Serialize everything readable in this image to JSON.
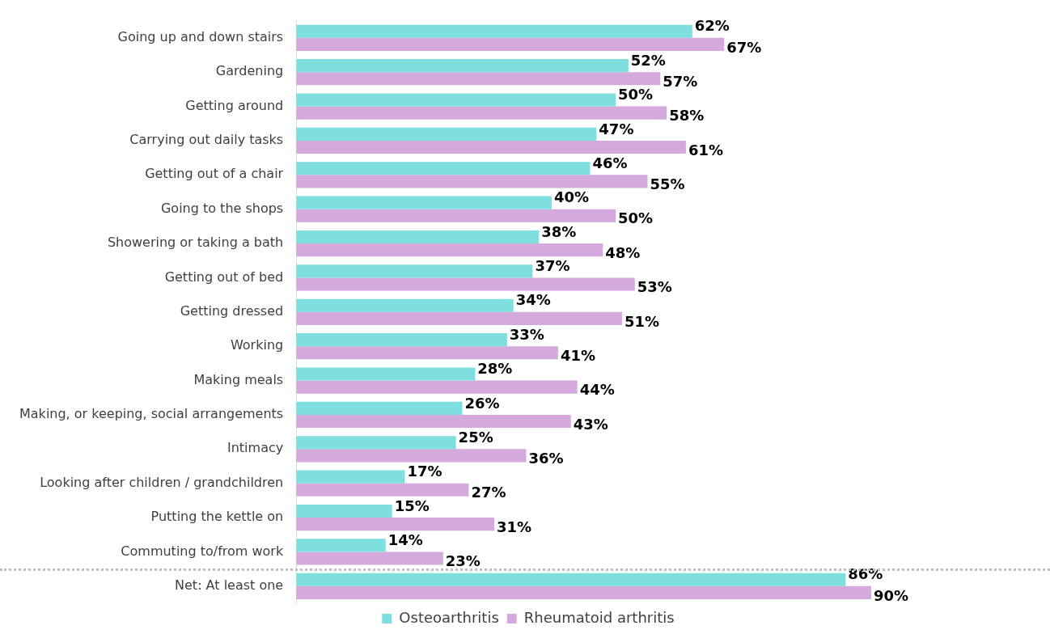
{
  "chart_data": {
    "type": "bar",
    "orientation": "horizontal",
    "categories": [
      "Going up and down stairs",
      "Gardening",
      "Getting around",
      "Carrying out daily tasks",
      "Getting out of a chair",
      "Going to the shops",
      "Showering or taking a bath",
      "Getting out of bed",
      "Getting dressed",
      "Working",
      "Making meals",
      "Making, or keeping, social arrangements",
      "Intimacy",
      "Looking after children / grandchildren",
      "Putting the kettle on",
      "Commuting to/from work",
      "Net: At least one"
    ],
    "series": [
      {
        "name": "Osteoarthritis",
        "color": "#7fdfdf",
        "values": [
          62,
          52,
          50,
          47,
          46,
          40,
          38,
          37,
          34,
          33,
          28,
          26,
          25,
          17,
          15,
          14,
          86
        ],
        "value_labels": [
          "62%",
          "52%",
          "50%",
          "47%",
          "46%",
          "40%",
          "38%",
          "37%",
          "34%",
          "33%",
          "28%",
          "26%",
          "25%",
          "17%",
          "15%",
          "14%",
          "86%"
        ]
      },
      {
        "name": "Rheumatoid arthritis",
        "color": "#d4aadd",
        "values": [
          67,
          57,
          58,
          61,
          55,
          50,
          48,
          53,
          51,
          41,
          44,
          43,
          36,
          27,
          31,
          23,
          90
        ],
        "value_labels": [
          "67%",
          "57%",
          "58%",
          "61%",
          "55%",
          "50%",
          "48%",
          "53%",
          "51%",
          "41%",
          "44%",
          "43%",
          "36%",
          "27%",
          "31%",
          "23%",
          "90%"
        ]
      }
    ],
    "xlim": [
      0,
      118
    ],
    "tick_labels": "y",
    "grid": false,
    "legend": "bottom"
  }
}
